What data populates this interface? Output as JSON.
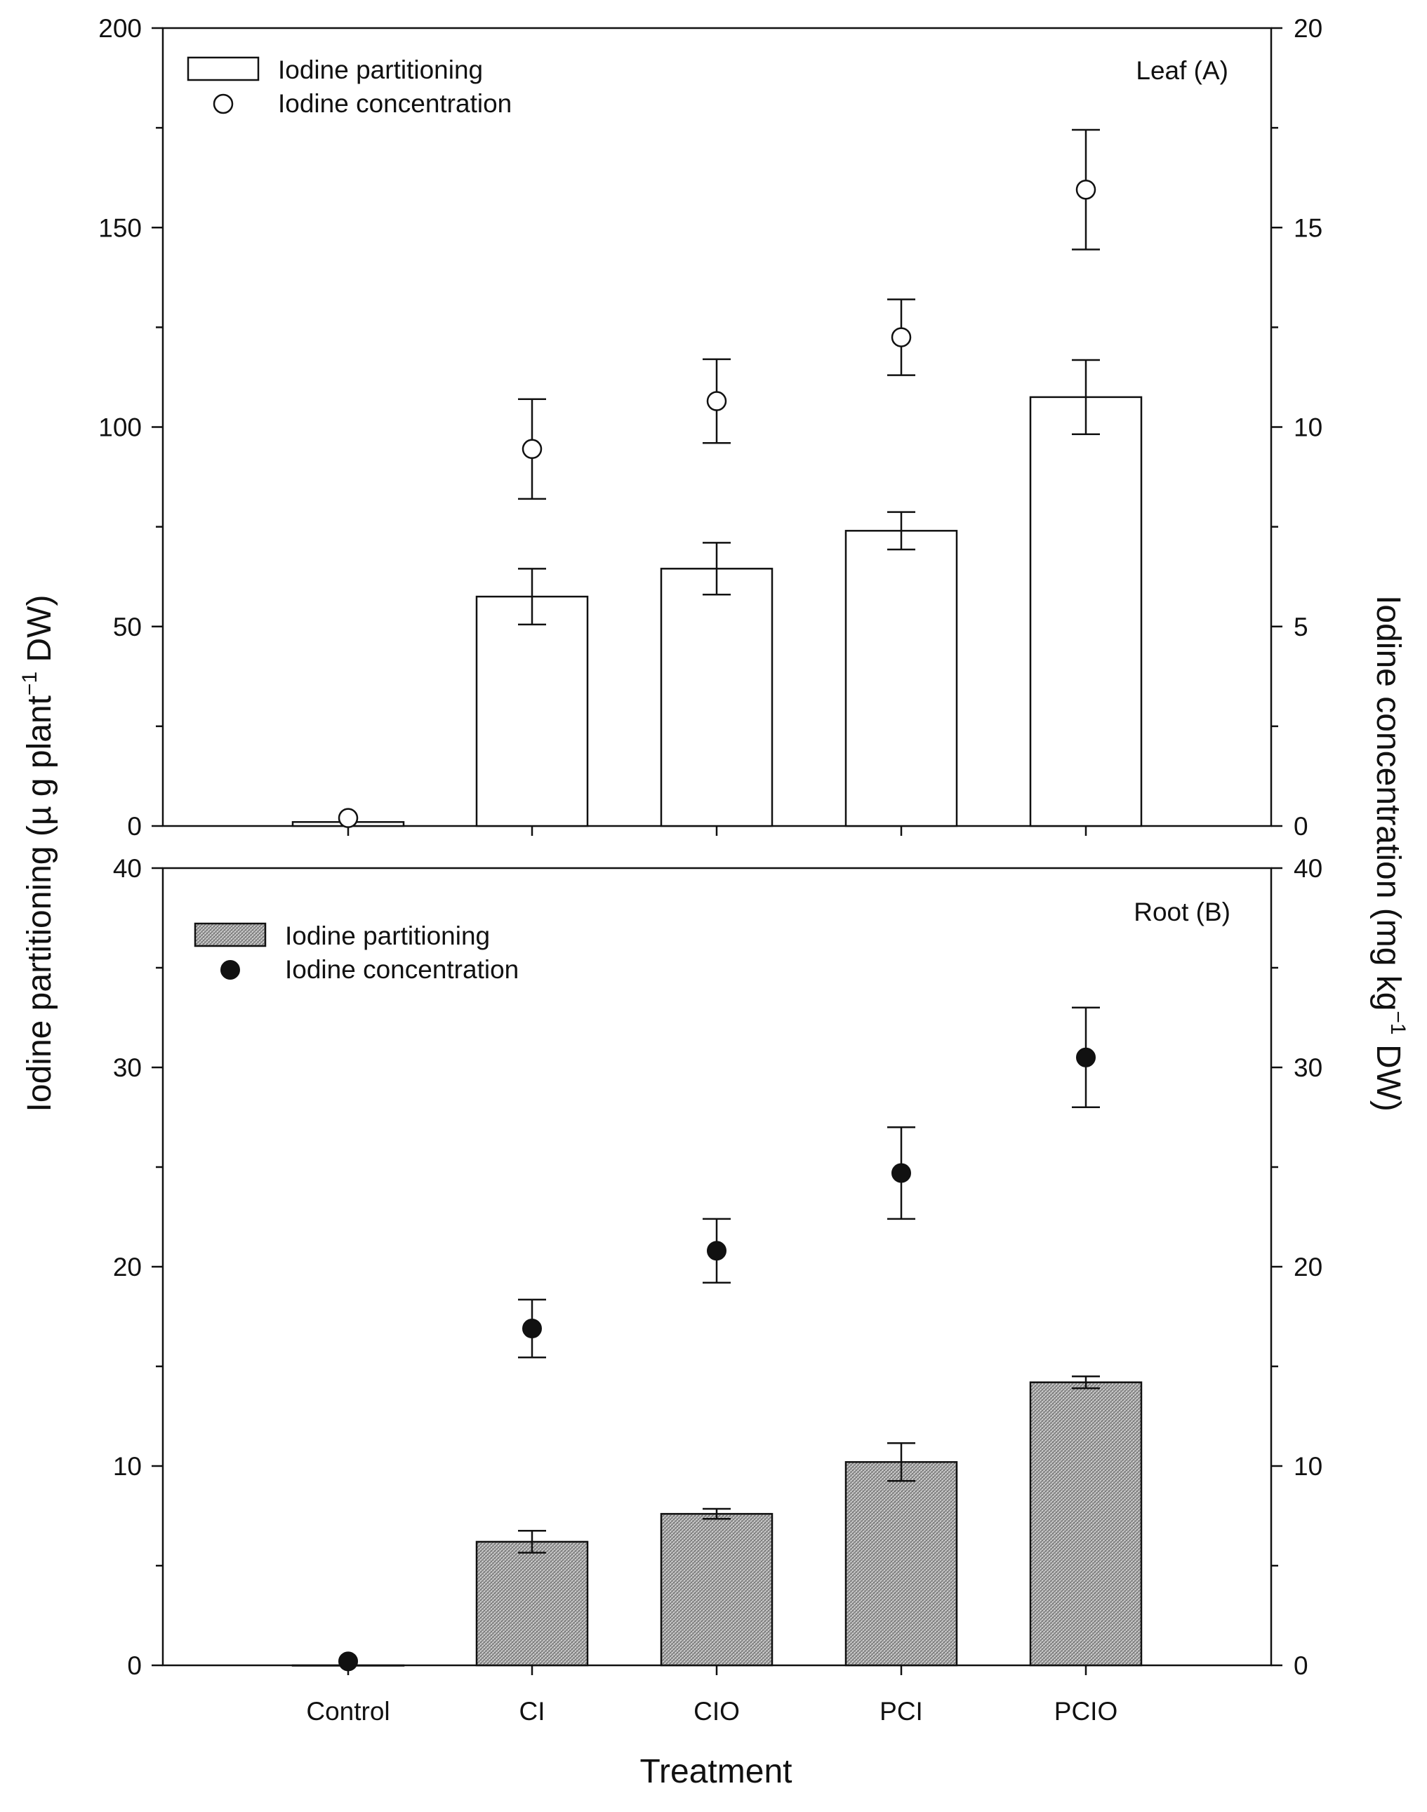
{
  "chart_data": [
    {
      "panel": "Leaf (A)",
      "type": "bar",
      "categories": [
        "Control",
        "CI",
        "CIO",
        "PCI",
        "PCIO"
      ],
      "series": [
        {
          "name": "Iodine partitioning",
          "kind": "bar",
          "axis": "left",
          "style": "open",
          "values": [
            1,
            57.5,
            64.5,
            74,
            107.5
          ],
          "errors": [
            0,
            7,
            6.5,
            4.7,
            9.3
          ]
        },
        {
          "name": "Iodine concentration",
          "kind": "scatter",
          "axis": "right",
          "style": "open-circle",
          "values": [
            0.2,
            9.45,
            10.65,
            12.25,
            15.95
          ],
          "errors": [
            0,
            1.25,
            1.05,
            0.95,
            1.5
          ]
        }
      ],
      "ylim_left": [
        0,
        200
      ],
      "yticks_left": [
        0,
        50,
        100,
        150,
        200
      ],
      "ylim_right": [
        0,
        20
      ],
      "yticks_right": [
        0,
        5,
        10,
        15,
        20
      ],
      "legend_position": "top-left"
    },
    {
      "panel": "Root (B)",
      "type": "bar",
      "categories": [
        "Control",
        "CI",
        "CIO",
        "PCI",
        "PCIO"
      ],
      "series": [
        {
          "name": "Iodine partitioning",
          "kind": "bar",
          "axis": "left",
          "style": "hatched",
          "values": [
            0,
            6.2,
            7.6,
            10.2,
            14.2
          ],
          "errors": [
            0,
            0.55,
            0.25,
            0.95,
            0.3
          ]
        },
        {
          "name": "Iodine concentration",
          "kind": "scatter",
          "axis": "right",
          "style": "filled-circle",
          "values": [
            0.2,
            16.9,
            20.8,
            24.7,
            30.5
          ],
          "errors": [
            0,
            1.45,
            1.6,
            2.3,
            2.5
          ]
        }
      ],
      "ylim_left": [
        0,
        40
      ],
      "yticks_left": [
        0,
        10,
        20,
        30,
        40
      ],
      "ylim_right": [
        0,
        40
      ],
      "yticks_right": [
        0,
        10,
        20,
        30,
        40
      ],
      "legend_position": "top-left"
    }
  ],
  "labels": {
    "xlabel": "Treatment",
    "ylabel_left_main": "Iodine partitioning (µ g plant",
    "ylabel_left_sup": "−1",
    "ylabel_left_tail": " DW)",
    "ylabel_right_main": "Iodine concentration (mg kg",
    "ylabel_right_sup": "−1",
    "ylabel_right_tail": " DW)"
  }
}
